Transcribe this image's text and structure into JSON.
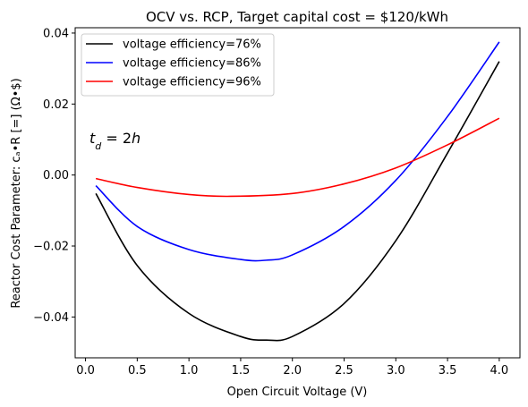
{
  "chart_data": {
    "type": "line",
    "title": "OCV vs. RCP, Target capital cost = $120/kWh",
    "xlabel": "Open Circuit Voltage (V)",
    "ylabel": "Reactor Cost Parameter: cₐ•R [=] (Ω•$)",
    "xlim": [
      -0.1,
      4.2
    ],
    "ylim": [
      -0.0515,
      0.0415
    ],
    "xticks": [
      0.0,
      0.5,
      1.0,
      1.5,
      2.0,
      2.5,
      3.0,
      3.5,
      4.0
    ],
    "xtick_labels": [
      "0.0",
      "0.5",
      "1.0",
      "1.5",
      "2.0",
      "2.5",
      "3.0",
      "3.5",
      "4.0"
    ],
    "yticks": [
      -0.04,
      -0.02,
      0.0,
      0.02,
      0.04
    ],
    "ytick_labels": [
      "−0.04",
      "−0.02",
      "0.00",
      "0.02",
      "0.04"
    ],
    "grid": false,
    "legend_position": "top-left",
    "annotation": "t_d = 2h",
    "series": [
      {
        "name": "voltage efficiency=76%",
        "color": "#000000",
        "x": [
          0.1,
          0.5,
          1.0,
          1.5,
          1.75,
          2.0,
          2.5,
          3.0,
          3.5,
          4.0
        ],
        "y": [
          -0.0052,
          -0.0255,
          -0.039,
          -0.0455,
          -0.0465,
          -0.0455,
          -0.0362,
          -0.0185,
          0.0062,
          0.032
        ]
      },
      {
        "name": "voltage efficiency=86%",
        "color": "#0000ff",
        "x": [
          0.1,
          0.5,
          1.0,
          1.5,
          1.75,
          2.0,
          2.5,
          3.0,
          3.5,
          4.0
        ],
        "y": [
          -0.003,
          -0.0145,
          -0.021,
          -0.0238,
          -0.024,
          -0.0225,
          -0.0145,
          -0.0015,
          0.0165,
          0.0375
        ]
      },
      {
        "name": "voltage efficiency=96%",
        "color": "#ff0000",
        "x": [
          0.1,
          0.5,
          1.0,
          1.4,
          2.0,
          2.5,
          3.0,
          3.5,
          4.0
        ],
        "y": [
          -0.001,
          -0.0035,
          -0.0055,
          -0.006,
          -0.0052,
          -0.0025,
          0.002,
          0.0085,
          0.016
        ]
      }
    ]
  }
}
